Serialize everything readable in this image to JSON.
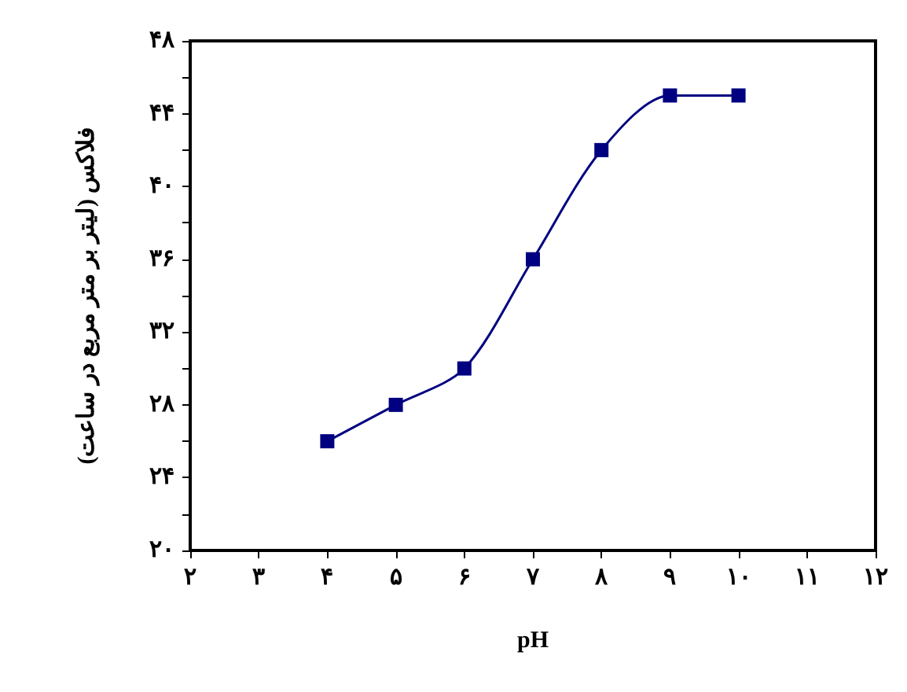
{
  "chart_data": {
    "type": "line",
    "xlabel": "pH",
    "ylabel": "فلاکس (لیتر بر متر مربع در ساعت)",
    "x": [
      4,
      5,
      6,
      7,
      8,
      9,
      10
    ],
    "series": [
      {
        "color": "#000080",
        "values": [
          26,
          28,
          30,
          36,
          42,
          45,
          45
        ]
      }
    ],
    "xlim": [
      2,
      12
    ],
    "ylim": [
      20,
      48
    ],
    "xticks": [
      {
        "value": 2,
        "label": "۲"
      },
      {
        "value": 3,
        "label": "۳"
      },
      {
        "value": 4,
        "label": "۴"
      },
      {
        "value": 5,
        "label": "۵"
      },
      {
        "value": 6,
        "label": "۶"
      },
      {
        "value": 7,
        "label": "۷"
      },
      {
        "value": 8,
        "label": "۸"
      },
      {
        "value": 9,
        "label": "۹"
      },
      {
        "value": 10,
        "label": "۱۰"
      },
      {
        "value": 11,
        "label": "۱۱"
      },
      {
        "value": 12,
        "label": "۱۲"
      }
    ],
    "yticks": [
      {
        "value": 20,
        "label": "۲۰"
      },
      {
        "value": 22,
        "label": null
      },
      {
        "value": 24,
        "label": "۲۴"
      },
      {
        "value": 26,
        "label": null
      },
      {
        "value": 28,
        "label": "۲۸"
      },
      {
        "value": 30,
        "label": null
      },
      {
        "value": 32,
        "label": "۳۲"
      },
      {
        "value": 34,
        "label": null
      },
      {
        "value": 36,
        "label": "۳۶"
      },
      {
        "value": 38,
        "label": null
      },
      {
        "value": 40,
        "label": "۴۰"
      },
      {
        "value": 42,
        "label": null
      },
      {
        "value": 44,
        "label": "۴۴"
      },
      {
        "value": 46,
        "label": null
      },
      {
        "value": 48,
        "label": "۴۸"
      }
    ],
    "grid": false,
    "marker": "square",
    "line_style": "solid"
  }
}
